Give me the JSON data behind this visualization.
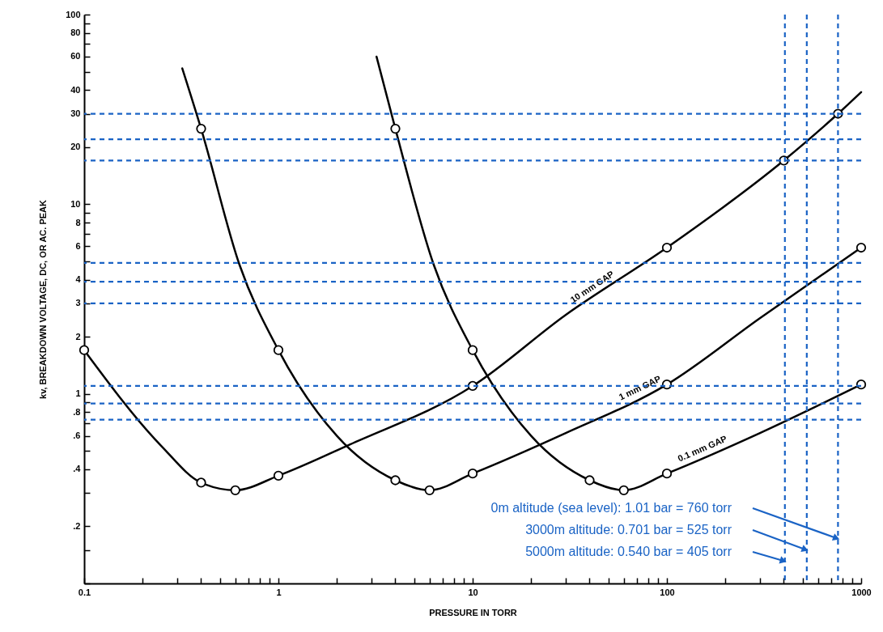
{
  "chart_data": {
    "type": "line",
    "xlabel": "PRESSURE IN TORR",
    "ylabel": "kv, BREAKDOWN VOLTAGE, DC, OR AC. PEAK",
    "log": "xy",
    "grid": false,
    "line_style": "solid",
    "marker": "none",
    "xlim": [
      0.1,
      1000
    ],
    "ylim": [
      0.1,
      100
    ],
    "xticks": [
      0.1,
      {
        "value": 0.2,
        "label": null
      },
      {
        "value": 0.3,
        "label": null
      },
      {
        "value": 0.4,
        "label": null
      },
      {
        "value": 0.5,
        "label": null
      },
      {
        "value": 0.6,
        "label": null
      },
      {
        "value": 0.7,
        "label": null
      },
      {
        "value": 0.8,
        "label": null
      },
      {
        "value": 0.9,
        "label": null
      },
      1,
      {
        "value": 2,
        "label": null
      },
      {
        "value": 3,
        "label": null
      },
      {
        "value": 4,
        "label": null
      },
      {
        "value": 5,
        "label": null
      },
      {
        "value": 6,
        "label": null
      },
      {
        "value": 7,
        "label": null
      },
      {
        "value": 8,
        "label": null
      },
      {
        "value": 9,
        "label": null
      },
      10,
      {
        "value": 20,
        "label": null
      },
      {
        "value": 30,
        "label": null
      },
      {
        "value": 40,
        "label": null
      },
      {
        "value": 50,
        "label": null
      },
      {
        "value": 60,
        "label": null
      },
      {
        "value": 70,
        "label": null
      },
      {
        "value": 80,
        "label": null
      },
      {
        "value": 90,
        "label": null
      },
      100,
      {
        "value": 200,
        "label": null
      },
      {
        "value": 300,
        "label": null
      },
      {
        "value": 400,
        "label": null
      },
      {
        "value": 500,
        "label": null
      },
      {
        "value": 600,
        "label": null
      },
      {
        "value": 700,
        "label": null
      },
      {
        "value": 800,
        "label": null
      },
      {
        "value": 900,
        "label": null
      },
      1000
    ],
    "yticks": [
      {
        "value": 0.1,
        "label": null
      },
      {
        "value": 0.15,
        "label": null
      },
      {
        "value": 0.2,
        "label": ".2"
      },
      {
        "value": 0.3,
        "label": null
      },
      {
        "value": 0.4,
        "label": ".4"
      },
      {
        "value": 0.5,
        "label": null
      },
      {
        "value": 0.6,
        "label": ".6"
      },
      {
        "value": 0.7,
        "label": null
      },
      {
        "value": 0.8,
        "label": ".8"
      },
      {
        "value": 0.9,
        "label": null
      },
      1,
      2,
      3,
      4,
      {
        "value": 5,
        "label": null
      },
      6,
      {
        "value": 7,
        "label": null
      },
      8,
      {
        "value": 9,
        "label": null
      },
      10,
      20,
      30,
      40,
      {
        "value": 50,
        "label": null
      },
      60,
      {
        "value": 70,
        "label": null
      },
      80,
      {
        "value": 90,
        "label": null
      },
      100
    ],
    "series": [
      {
        "name": "10 mm GAP",
        "color": "#000000",
        "x": [
          0.1,
          0.25,
          0.4,
          0.6,
          1,
          2.33,
          10,
          30,
          100,
          400,
          760,
          1000
        ],
        "values": [
          1.7,
          0.53,
          0.34,
          0.31,
          0.37,
          0.54,
          1.1,
          2.6,
          5.9,
          17,
          30,
          39
        ]
      },
      {
        "name": "1 mm GAP",
        "color": "#000000",
        "x": [
          0.32,
          0.4,
          0.63,
          1,
          2,
          4,
          6,
          10,
          30,
          100,
          300,
          1000
        ],
        "values": [
          52,
          25,
          4.8,
          1.7,
          0.6,
          0.35,
          0.31,
          0.38,
          0.62,
          1.12,
          2.5,
          5.9
        ]
      },
      {
        "name": "0.1 mm GAP",
        "color": "#000000",
        "x": [
          3.2,
          4,
          6.3,
          10,
          20,
          40,
          60,
          100,
          300,
          1000
        ],
        "values": [
          60,
          25,
          4.8,
          1.7,
          0.6,
          0.35,
          0.31,
          0.38,
          0.62,
          1.12
        ]
      },
      {
        "type": "scatter",
        "marker": "circle",
        "color": "#000000",
        "x": [
          0.1,
          0.4,
          0.6,
          1,
          10,
          100,
          400,
          760,
          0.4,
          1,
          4,
          6,
          10,
          100,
          1000,
          4,
          10,
          40,
          60,
          100,
          1000
        ],
        "values": [
          1.7,
          0.34,
          0.31,
          0.37,
          1.1,
          5.9,
          17,
          30,
          25,
          1.7,
          0.35,
          0.31,
          0.38,
          1.12,
          5.9,
          25,
          1.7,
          0.35,
          0.31,
          0.38,
          1.12
        ]
      }
    ],
    "ref_lines": [
      {
        "axis": "y",
        "value": 30,
        "color": "#1a63c5",
        "line_style": "dashed"
      },
      {
        "axis": "y",
        "value": 22,
        "color": "#1a63c5",
        "line_style": "dashed"
      },
      {
        "axis": "y",
        "value": 17,
        "color": "#1a63c5",
        "line_style": "dashed"
      },
      {
        "axis": "y",
        "value": 4.9,
        "color": "#1a63c5",
        "line_style": "dashed"
      },
      {
        "axis": "y",
        "value": 3.9,
        "color": "#1a63c5",
        "line_style": "dashed"
      },
      {
        "axis": "y",
        "value": 3,
        "color": "#1a63c5",
        "line_style": "dashed"
      },
      {
        "axis": "y",
        "value": 1.1,
        "color": "#1a63c5",
        "line_style": "dashed"
      },
      {
        "axis": "y",
        "value": 0.89,
        "color": "#1a63c5",
        "line_style": "dashed"
      },
      {
        "axis": "y",
        "value": 0.73,
        "color": "#1a63c5",
        "line_style": "dashed"
      },
      {
        "axis": "x",
        "value": 405,
        "color": "#1a63c5",
        "line_style": "dashed"
      },
      {
        "axis": "x",
        "value": 525,
        "color": "#1a63c5",
        "line_style": "dashed"
      },
      {
        "axis": "x",
        "value": 760,
        "color": "#1a63c5",
        "line_style": "dashed"
      }
    ],
    "annotations": [
      "0m altitude (sea level): 1.01 bar = 760 torr",
      "3000m altitude: 0.701 bar = 525 torr",
      "5000m altitude: 0.540 bar = 405 torr"
    ]
  }
}
